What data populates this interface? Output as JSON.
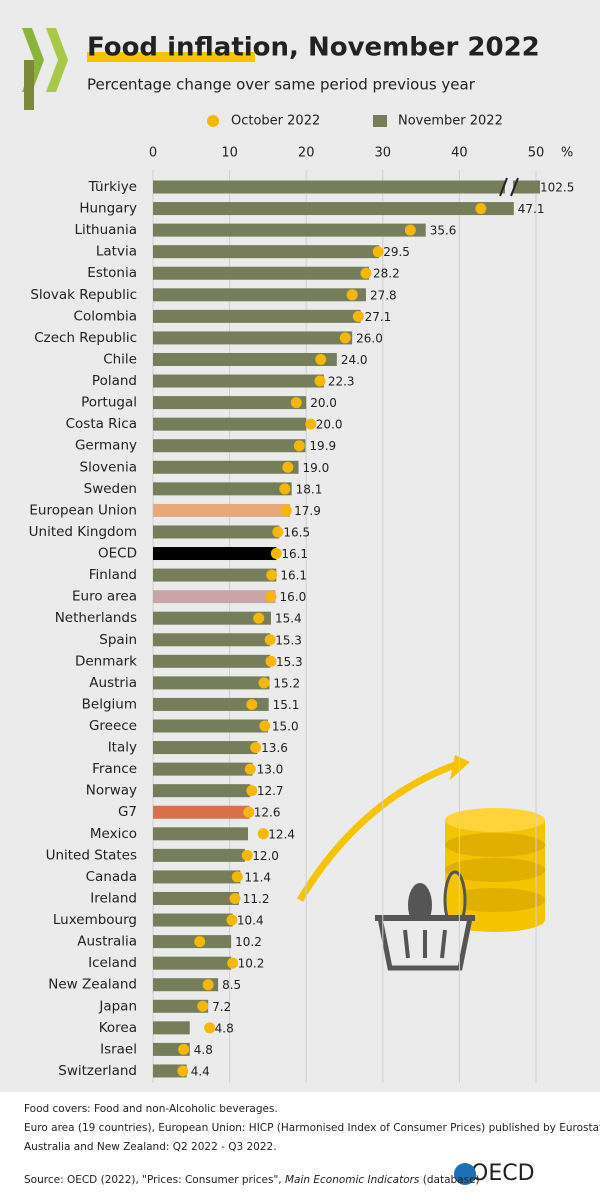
{
  "title": "Food inflation, November 2022",
  "subtitle": "Percentage change over same period previous year",
  "chart_data": {
    "type": "bar",
    "orientation": "horizontal",
    "x_unit": "%",
    "categories": [
      "Türkiye",
      "Hungary",
      "Lithuania",
      "Latvia",
      "Estonia",
      "Slovak Republic",
      "Colombia",
      "Czech Republic",
      "Chile",
      "Poland",
      "Portugal",
      "Costa Rica",
      "Germany",
      "Slovenia",
      "Sweden",
      "European Union",
      "United Kingdom",
      "OECD",
      "Finland",
      "Euro area",
      "Netherlands",
      "Spain",
      "Denmark",
      "Austria",
      "Belgium",
      "Greece",
      "Italy",
      "France",
      "Norway",
      "G7",
      "Mexico",
      "United States",
      "Canada",
      "Ireland",
      "Luxembourg",
      "Australia",
      "Iceland",
      "New Zealand",
      "Japan",
      "Korea",
      "Israel",
      "Switzerland"
    ],
    "series": [
      {
        "name": "November 2022",
        "mark": "bar",
        "color": "#767d5a",
        "colors": [
          "#767d5a",
          "#767d5a",
          "#767d5a",
          "#767d5a",
          "#767d5a",
          "#767d5a",
          "#767d5a",
          "#767d5a",
          "#767d5a",
          "#767d5a",
          "#767d5a",
          "#767d5a",
          "#767d5a",
          "#767d5a",
          "#767d5a",
          "#e8a878",
          "#767d5a",
          "#000000",
          "#767d5a",
          "#c9a5a8",
          "#767d5a",
          "#767d5a",
          "#767d5a",
          "#767d5a",
          "#767d5a",
          "#767d5a",
          "#767d5a",
          "#767d5a",
          "#767d5a",
          "#d8704a",
          "#767d5a",
          "#767d5a",
          "#767d5a",
          "#767d5a",
          "#767d5a",
          "#767d5a",
          "#767d5a",
          "#767d5a",
          "#767d5a",
          "#767d5a",
          "#767d5a",
          "#767d5a"
        ],
        "values": [
          102.5,
          47.1,
          35.6,
          29.5,
          28.2,
          27.8,
          27.1,
          26.0,
          24.0,
          22.3,
          20.0,
          20.0,
          19.9,
          19.0,
          18.1,
          17.9,
          16.5,
          16.1,
          16.1,
          16.0,
          15.4,
          15.3,
          15.3,
          15.2,
          15.1,
          15.0,
          13.6,
          13.0,
          12.7,
          12.6,
          12.4,
          12.0,
          11.4,
          11.2,
          10.4,
          10.2,
          10.2,
          8.5,
          7.2,
          4.8,
          4.8,
          4.4
        ],
        "value_labels": [
          "102.5",
          "47.1",
          "35.6",
          "29.5",
          "28.2",
          "27.8",
          "27.1",
          "26.0",
          "24.0",
          "22.3",
          "20.0",
          "20.0",
          "19.9",
          "19.0",
          "18.1",
          "17.9",
          "16.5",
          "16.1",
          "16.1",
          "16.0",
          "15.4",
          "15.3",
          "15.3",
          "15.2",
          "15.1",
          "15.0",
          "13.6",
          "13.0",
          "12.7",
          "12.6",
          "12.4",
          "12.0",
          "11.4",
          "11.2",
          "10.4",
          "10.2",
          "10.2",
          "8.5",
          "7.2",
          "4.8",
          "4.8",
          "4.4"
        ]
      },
      {
        "name": "October 2022",
        "mark": "dot",
        "color": "#f5b800",
        "values": [
          null,
          42.8,
          33.6,
          29.4,
          27.8,
          26.0,
          26.8,
          25.1,
          21.9,
          21.8,
          18.7,
          20.6,
          19.1,
          17.6,
          17.2,
          17.4,
          16.3,
          16.1,
          15.5,
          15.4,
          13.8,
          15.3,
          15.4,
          14.5,
          12.9,
          14.6,
          13.4,
          12.7,
          12.9,
          12.5,
          14.4,
          12.3,
          11.0,
          10.7,
          10.3,
          6.1,
          10.4,
          7.2,
          6.5,
          7.4,
          4.0,
          3.9
        ]
      }
    ],
    "xlim": [
      0,
      50
    ],
    "xticks": [
      0,
      10,
      20,
      30,
      40,
      50
    ],
    "grid": true
  },
  "notes": [
    "Food covers: Food and non-Alcoholic beverages.",
    "Euro area (19 countries), European Union: HICP (Harmonised Index of Consumer Prices) published by Eurostat.",
    "Australia and New Zealand:  Q2 2022 - Q3 2022."
  ],
  "source": [
    "Source: OECD (2022), \"Prices: Consumer prices\", ",
    "Main Economic Indicators",
    " (database)"
  ],
  "logo_text": "OECD"
}
